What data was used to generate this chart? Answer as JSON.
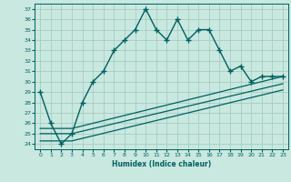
{
  "xlabel": "Humidex (Indice chaleur)",
  "ylabel": "",
  "background_color": "#c8e8e0",
  "grid_color": "#a0c8c0",
  "line_color": "#006060",
  "xlim": [
    -0.5,
    23.5
  ],
  "ylim": [
    23.5,
    37.5
  ],
  "xticks": [
    0,
    1,
    2,
    3,
    4,
    5,
    6,
    7,
    8,
    9,
    10,
    11,
    12,
    13,
    14,
    15,
    16,
    17,
    18,
    19,
    20,
    21,
    22,
    23
  ],
  "yticks": [
    24,
    25,
    26,
    27,
    28,
    29,
    30,
    31,
    32,
    33,
    34,
    35,
    36,
    37
  ],
  "series": [
    {
      "x": [
        0,
        1,
        2,
        3,
        4,
        5,
        6,
        7,
        8,
        9,
        10,
        11,
        12,
        13,
        14,
        15,
        16,
        17,
        18,
        19,
        20,
        21,
        22,
        23
      ],
      "y": [
        29,
        26,
        24,
        25,
        28,
        30,
        31,
        33,
        34,
        35,
        37,
        35,
        34,
        36,
        34,
        35,
        35,
        33,
        31,
        31.5,
        30,
        30.5,
        30.5,
        30.5
      ],
      "marker": "+",
      "linewidth": 1.0,
      "markersize": 4
    },
    {
      "x": [
        0,
        3,
        23
      ],
      "y": [
        25.5,
        25.5,
        30.5
      ],
      "marker": null,
      "linewidth": 0.9,
      "markersize": 0
    },
    {
      "x": [
        0,
        3,
        23
      ],
      "y": [
        25.0,
        25.0,
        29.8
      ],
      "marker": null,
      "linewidth": 0.9,
      "markersize": 0
    },
    {
      "x": [
        0,
        3,
        23
      ],
      "y": [
        24.3,
        24.3,
        29.2
      ],
      "marker": null,
      "linewidth": 0.9,
      "markersize": 0
    }
  ]
}
